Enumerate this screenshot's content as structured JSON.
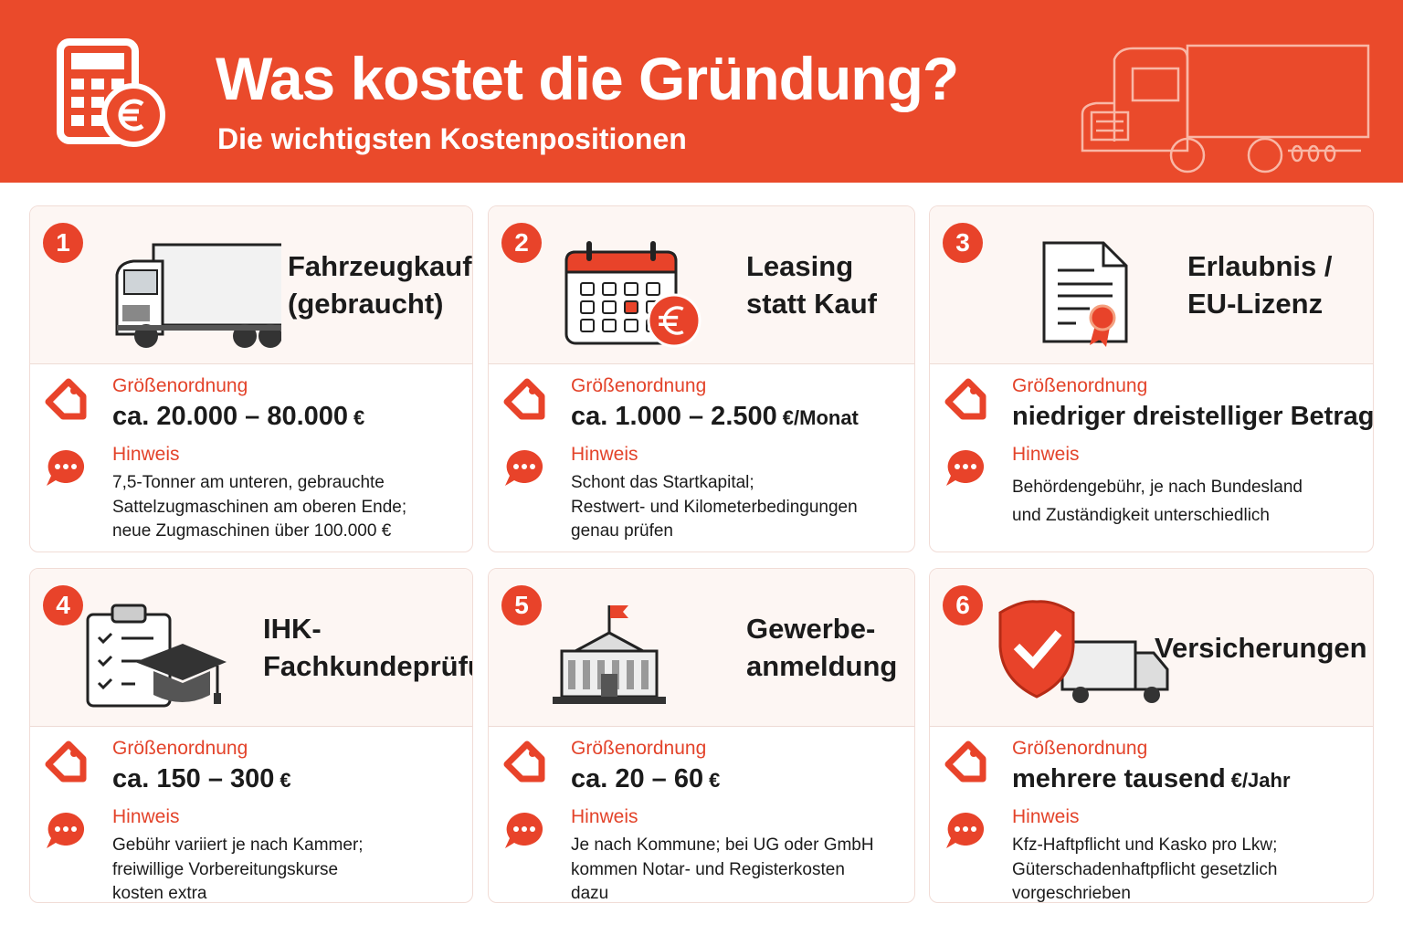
{
  "header": {
    "title": "Was kostet die Gründung?",
    "subtitle": "Die wichtigsten Kostenpositionen"
  },
  "cards": [
    {
      "number": "1",
      "title": [
        "Fahrzeugkauf",
        "(gebraucht)"
      ],
      "size_label": "Größenordnung",
      "size_value": {
        "main": "ca. 20.000 – 80.000",
        "unit": "€"
      },
      "note_label": "Hinweis",
      "note": [
        "7,5-Tonner am unteren, gebrauchte",
        "Sattelzugmaschinen am oberen Ende;",
        "neue Zugmaschinen über 100.000 €"
      ]
    },
    {
      "number": "2",
      "title": [
        "Leasing",
        "statt Kauf"
      ],
      "size_label": "Größenordnung",
      "size_value": {
        "main": "ca. 1.000 – 2.500",
        "unit": "€/Monat"
      },
      "note_label": "Hinweis",
      "note": [
        "Schont das Startkapital;",
        "Restwert- und Kilometerbedingungen",
        "genau prüfen"
      ]
    },
    {
      "number": "3",
      "title": [
        "Erlaubnis /",
        "EU-Lizenz"
      ],
      "size_label": "Größenordnung",
      "size_value": {
        "main": "niedriger dreistelliger Betrag"
      },
      "note_label": "Hinweis",
      "note": [
        "Behördengebühr, je nach Bundesland",
        "und Zuständigkeit unterschiedlich"
      ]
    },
    {
      "number": "4",
      "title": [
        "IHK-",
        "Fachkundeprüfung"
      ],
      "size_label": "Größenordnung",
      "size_value": {
        "main": "ca. 150 – 300",
        "unit": "€"
      },
      "note_label": "Hinweis",
      "note": [
        "Gebühr variiert je nach Kammer;",
        "freiwillige Vorbereitungskurse",
        "kosten extra"
      ]
    },
    {
      "number": "5",
      "title": [
        "Gewerbe-",
        "anmeldung"
      ],
      "size_label": "Größenordnung",
      "size_value": {
        "main": "ca. 20 – 60",
        "unit": "€"
      },
      "note_label": "Hinweis",
      "note": [
        "Je nach Kommune; bei UG oder GmbH",
        "kommen Notar- und Registerkosten",
        "dazu"
      ]
    },
    {
      "number": "6",
      "title": [
        "Versicherungen"
      ],
      "size_label": "Größenordnung",
      "size_value": {
        "main": "mehrere tausend",
        "unit": "€/Jahr"
      },
      "note_label": "Hinweis",
      "note": [
        "Kfz-Haftpflicht und Kasko pro Lkw;",
        "Güterschadenhaftpflicht gesetzlich",
        "vorgeschrieben"
      ]
    }
  ]
}
